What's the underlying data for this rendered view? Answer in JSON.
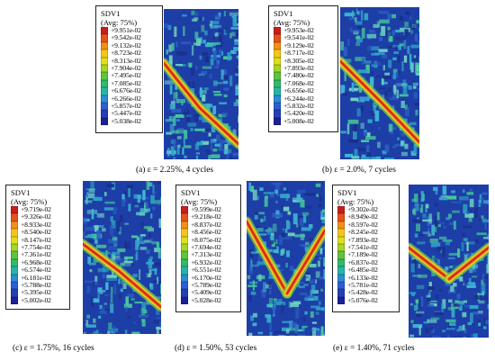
{
  "field_label": "SDV1",
  "averaging_label": "(Avg: 75%)",
  "colors": {
    "legend_scale": [
      "#c81e1e",
      "#e8501c",
      "#f28f1a",
      "#f5c51a",
      "#dde01a",
      "#a6d523",
      "#5cc63c",
      "#2ebc6a",
      "#26b5a8",
      "#2a8ed4",
      "#2c5fd4",
      "#253fb7",
      "#1c1f96"
    ],
    "mesh_background": "#1d3ea6",
    "mesh_cells": [
      "#2fa6c8",
      "#3fb5d5",
      "#2b5fc4",
      "#46c89a",
      "#1a2f8c",
      "#6fd1c2"
    ],
    "crack_band": [
      "#c41d1d",
      "#f06419",
      "#f7d51d",
      "#71cd47"
    ]
  },
  "panels": [
    {
      "id": "a",
      "caption": "(a) ε = 2.25%, 4 cycles",
      "values": [
        "+9.951e-02",
        "+9.542e-02",
        "+9.132e-02",
        "+8.723e-02",
        "+8.313e-02",
        "+7.904e-02",
        "+7.495e-02",
        "+7.085e-02",
        "+6.676e-02",
        "+6.266e-02",
        "+5.857e-02",
        "+5.447e-02",
        "+5.038e-02"
      ]
    },
    {
      "id": "b",
      "caption": "(b) ε = 2.0%, 7 cycles",
      "values": [
        "+9.953e-02",
        "+9.541e-02",
        "+9.129e-02",
        "+8.717e-02",
        "+8.305e-02",
        "+7.893e-02",
        "+7.480e-02",
        "+7.068e-02",
        "+6.656e-02",
        "+6.244e-02",
        "+5.832e-02",
        "+5.420e-02",
        "+5.008e-02"
      ]
    },
    {
      "id": "c",
      "caption": "(c) ε = 1.75%, 16 cycles",
      "values": [
        "+9.719e-02",
        "+9.326e-02",
        "+8.933e-02",
        "+8.540e-02",
        "+8.147e-02",
        "+7.754e-02",
        "+7.361e-02",
        "+6.968e-02",
        "+6.574e-02",
        "+6.181e-02",
        "+5.788e-02",
        "+5.395e-02",
        "+5.002e-02"
      ]
    },
    {
      "id": "d",
      "caption": "(d) ε = 1.50%, 53 cycles",
      "values": [
        "+9.599e-02",
        "+9.218e-02",
        "+8.837e-02",
        "+8.456e-02",
        "+8.075e-02",
        "+7.694e-02",
        "+7.313e-02",
        "+6.932e-02",
        "+6.551e-02",
        "+6.170e-02",
        "+5.789e-02",
        "+5.409e-02",
        "+5.028e-02"
      ]
    },
    {
      "id": "e",
      "caption": "(e) ε = 1.40%, 71 cycles",
      "values": [
        "+9.302e-02",
        "+8.949e-02",
        "+8.597e-02",
        "+8.245e-02",
        "+7.893e-02",
        "+7.541e-02",
        "+7.189e-02",
        "+6.837e-02",
        "+6.485e-02",
        "+6.133e-02",
        "+5.781e-02",
        "+5.428e-02",
        "+5.076e-02"
      ]
    }
  ]
}
